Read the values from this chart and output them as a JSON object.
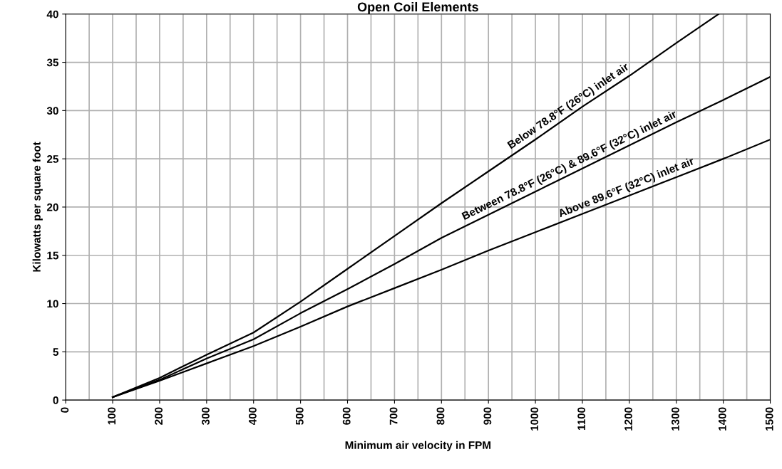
{
  "chart_data": {
    "type": "line",
    "title": "Open Coil Elements",
    "xlabel": "Minimum air velocity in FPM",
    "ylabel": "Kilowatts per square foot",
    "series": [
      {
        "color": "#000000",
        "x": [
          100,
          200,
          300,
          400,
          500,
          600,
          700,
          800,
          900,
          1000,
          1100,
          1200,
          1300,
          1390
        ],
        "values": [
          0.3,
          2.3,
          4.7,
          7.0,
          10.2,
          13.6,
          17.0,
          20.4,
          23.7,
          27.0,
          30.4,
          33.6,
          37.0,
          40
        ]
      },
      {
        "color": "#000000",
        "x": [
          100,
          200,
          300,
          400,
          500,
          600,
          700,
          800,
          900,
          1000,
          1100,
          1200,
          1300,
          1400,
          1500
        ],
        "values": [
          0.3,
          2.1,
          4.3,
          6.3,
          9.0,
          11.5,
          14.1,
          16.8,
          19.2,
          21.6,
          24.0,
          26.4,
          28.8,
          31.1,
          33.5
        ]
      },
      {
        "color": "#000000",
        "x": [
          100,
          200,
          300,
          400,
          500,
          600,
          700,
          800,
          900,
          1000,
          1100,
          1200,
          1300,
          1400,
          1500
        ],
        "values": [
          0.3,
          2.0,
          3.8,
          5.6,
          7.6,
          9.7,
          11.6,
          13.5,
          15.5,
          17.4,
          19.3,
          21.2,
          23.1,
          25.0,
          27.0
        ]
      }
    ],
    "annotations": [
      "Below 78.8°F (26°C) inlet air",
      "Between 78.8°F (26°C) & 89.6°F (32°C) inlet air",
      "Above 89.6°F (32°C) inlet air"
    ],
    "xlim": [
      0,
      1500
    ],
    "ylim": [
      0,
      40
    ],
    "xticks": [
      0,
      100,
      200,
      300,
      400,
      500,
      600,
      700,
      800,
      900,
      1000,
      1100,
      1200,
      1300,
      1400,
      1500
    ],
    "yticks": [
      0,
      5,
      10,
      15,
      20,
      25,
      30,
      35,
      40
    ],
    "grid": true,
    "marker": "none",
    "line_style": "solid"
  }
}
